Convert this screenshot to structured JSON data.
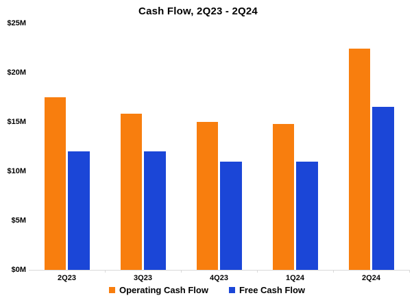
{
  "colors": {
    "operating": "#F87E0E",
    "free": "#1B46D7",
    "axis_line": "#D9D9D9",
    "text": "#000000",
    "background": "#FFFFFF"
  },
  "chart_data": {
    "type": "bar",
    "title": "Cash Flow, 2Q23 - 2Q24",
    "categories": [
      "2Q23",
      "3Q23",
      "4Q23",
      "1Q24",
      "2Q24"
    ],
    "series": [
      {
        "name": "Operating Cash Flow",
        "color": "#F87E0E",
        "values": [
          17.5,
          15.8,
          15.0,
          14.8,
          22.4
        ]
      },
      {
        "name": "Free Cash Flow",
        "color": "#1B46D7",
        "values": [
          12.0,
          12.0,
          11.0,
          11.0,
          16.5
        ]
      }
    ],
    "xlabel": "",
    "ylabel": "",
    "ylim": [
      0,
      25
    ],
    "yticks": [
      0,
      5,
      10,
      15,
      20,
      25
    ],
    "ytick_labels": [
      "$0M",
      "$5M",
      "$10M",
      "$15M",
      "$20M",
      "$25M"
    ],
    "grid": false,
    "legend_position": "bottom"
  }
}
